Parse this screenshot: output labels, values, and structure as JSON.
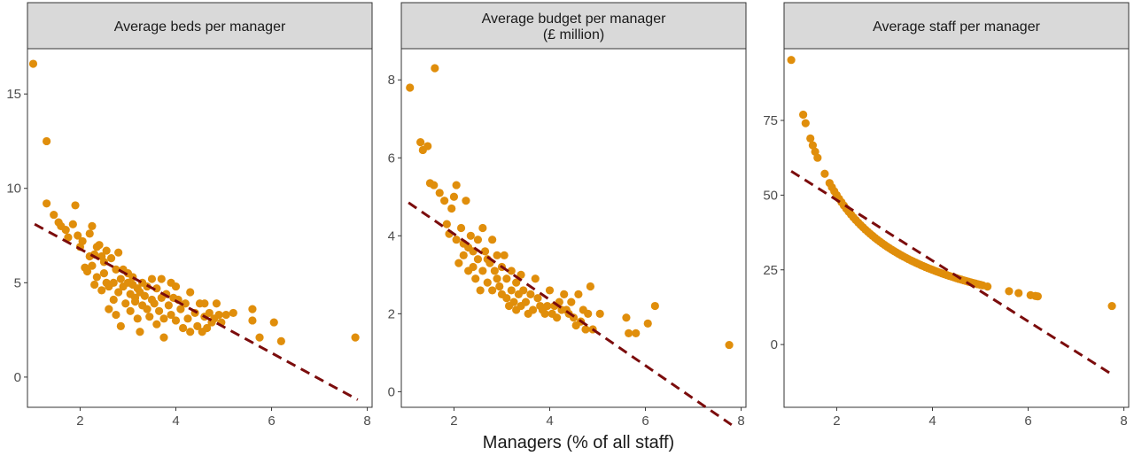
{
  "x_axis_title": "Managers (% of all staff)",
  "colors": {
    "point": "#E08E0B",
    "trend": "#7B0C0C",
    "strip": "#D9D9D9",
    "border": "#333333"
  },
  "chart_data": [
    {
      "type": "scatter",
      "title": "Average beds per manager",
      "title_lines": [
        "Average beds per manager"
      ],
      "xlim": [
        0.9,
        8.1
      ],
      "ylim": [
        -1.6,
        17.4
      ],
      "x_ticks": [
        2,
        4,
        6,
        8
      ],
      "y_ticks": [
        0,
        5,
        10,
        15
      ],
      "trend": {
        "x": [
          1.05,
          7.8
        ],
        "y": [
          8.1,
          -1.2
        ]
      },
      "points": [
        [
          1.02,
          16.6
        ],
        [
          1.3,
          12.5
        ],
        [
          1.3,
          9.2
        ],
        [
          1.45,
          8.6
        ],
        [
          1.55,
          8.2
        ],
        [
          1.6,
          8.0
        ],
        [
          1.7,
          7.8
        ],
        [
          1.75,
          7.4
        ],
        [
          1.85,
          8.1
        ],
        [
          1.9,
          9.1
        ],
        [
          1.95,
          7.5
        ],
        [
          2.0,
          6.9
        ],
        [
          2.05,
          7.2
        ],
        [
          2.1,
          5.8
        ],
        [
          2.15,
          5.6
        ],
        [
          2.2,
          7.6
        ],
        [
          2.2,
          6.4
        ],
        [
          2.25,
          5.9
        ],
        [
          2.25,
          8.0
        ],
        [
          2.3,
          6.5
        ],
        [
          2.3,
          4.9
        ],
        [
          2.35,
          5.3
        ],
        [
          2.35,
          6.9
        ],
        [
          2.4,
          7.0
        ],
        [
          2.45,
          6.4
        ],
        [
          2.45,
          4.6
        ],
        [
          2.5,
          6.1
        ],
        [
          2.5,
          5.5
        ],
        [
          2.55,
          6.7
        ],
        [
          2.55,
          5.0
        ],
        [
          2.6,
          4.8
        ],
        [
          2.6,
          3.6
        ],
        [
          2.65,
          6.3
        ],
        [
          2.7,
          5.0
        ],
        [
          2.7,
          4.1
        ],
        [
          2.75,
          5.7
        ],
        [
          2.75,
          3.3
        ],
        [
          2.8,
          6.6
        ],
        [
          2.8,
          4.5
        ],
        [
          2.85,
          2.7
        ],
        [
          2.85,
          5.2
        ],
        [
          2.9,
          5.7
        ],
        [
          2.9,
          4.8
        ],
        [
          2.95,
          3.9
        ],
        [
          3.0,
          5.0
        ],
        [
          3.0,
          5.5
        ],
        [
          3.05,
          4.4
        ],
        [
          3.05,
          3.5
        ],
        [
          3.1,
          4.9
        ],
        [
          3.1,
          5.3
        ],
        [
          3.15,
          4.2
        ],
        [
          3.15,
          4.0
        ],
        [
          3.2,
          3.1
        ],
        [
          3.2,
          4.7
        ],
        [
          3.25,
          4.5
        ],
        [
          3.25,
          2.4
        ],
        [
          3.3,
          3.8
        ],
        [
          3.3,
          5.0
        ],
        [
          3.35,
          4.3
        ],
        [
          3.4,
          3.6
        ],
        [
          3.4,
          4.8
        ],
        [
          3.45,
          3.2
        ],
        [
          3.5,
          5.2
        ],
        [
          3.5,
          4.1
        ],
        [
          3.55,
          3.9
        ],
        [
          3.6,
          2.8
        ],
        [
          3.6,
          4.7
        ],
        [
          3.65,
          3.5
        ],
        [
          3.7,
          5.2
        ],
        [
          3.7,
          4.2
        ],
        [
          3.75,
          3.1
        ],
        [
          3.75,
          2.1
        ],
        [
          3.8,
          4.4
        ],
        [
          3.85,
          3.8
        ],
        [
          3.9,
          5.0
        ],
        [
          3.9,
          3.3
        ],
        [
          3.95,
          4.2
        ],
        [
          4.0,
          3.0
        ],
        [
          4.0,
          4.8
        ],
        [
          4.05,
          4.1
        ],
        [
          4.1,
          3.6
        ],
        [
          4.15,
          2.6
        ],
        [
          4.2,
          3.9
        ],
        [
          4.25,
          3.1
        ],
        [
          4.3,
          4.5
        ],
        [
          4.3,
          2.4
        ],
        [
          4.4,
          3.4
        ],
        [
          4.45,
          2.7
        ],
        [
          4.5,
          3.9
        ],
        [
          4.55,
          2.4
        ],
        [
          4.6,
          3.2
        ],
        [
          4.6,
          3.9
        ],
        [
          4.65,
          2.6
        ],
        [
          4.7,
          3.4
        ],
        [
          4.75,
          2.9
        ],
        [
          4.8,
          3.1
        ],
        [
          4.85,
          3.9
        ],
        [
          4.9,
          3.3
        ],
        [
          4.95,
          2.9
        ],
        [
          5.05,
          3.3
        ],
        [
          5.2,
          3.4
        ],
        [
          5.6,
          3.6
        ],
        [
          5.6,
          3.0
        ],
        [
          5.75,
          2.1
        ],
        [
          6.05,
          2.9
        ],
        [
          6.2,
          1.9
        ],
        [
          7.75,
          2.1
        ]
      ]
    },
    {
      "type": "scatter",
      "title": "Average budget per manager (£ million)",
      "title_lines": [
        "Average budget per manager",
        "(£ million)"
      ],
      "xlim": [
        0.9,
        8.1
      ],
      "ylim": [
        -0.4,
        8.8
      ],
      "x_ticks": [
        2,
        4,
        6,
        8
      ],
      "y_ticks": [
        0,
        2,
        4,
        6,
        8
      ],
      "trend": {
        "x": [
          1.05,
          7.8
        ],
        "y": [
          4.85,
          -0.85
        ]
      },
      "points": [
        [
          1.08,
          7.8
        ],
        [
          1.3,
          6.4
        ],
        [
          1.35,
          6.2
        ],
        [
          1.45,
          6.3
        ],
        [
          1.5,
          5.35
        ],
        [
          1.58,
          5.3
        ],
        [
          1.6,
          8.3
        ],
        [
          1.7,
          5.1
        ],
        [
          1.8,
          4.9
        ],
        [
          1.85,
          4.3
        ],
        [
          1.9,
          4.05
        ],
        [
          1.95,
          4.7
        ],
        [
          2.0,
          5.0
        ],
        [
          2.05,
          3.9
        ],
        [
          2.05,
          5.3
        ],
        [
          2.1,
          3.3
        ],
        [
          2.15,
          4.2
        ],
        [
          2.2,
          3.8
        ],
        [
          2.2,
          3.5
        ],
        [
          2.25,
          4.9
        ],
        [
          2.3,
          3.7
        ],
        [
          2.3,
          3.1
        ],
        [
          2.35,
          4.0
        ],
        [
          2.4,
          3.6
        ],
        [
          2.4,
          3.2
        ],
        [
          2.45,
          2.9
        ],
        [
          2.5,
          3.4
        ],
        [
          2.5,
          3.9
        ],
        [
          2.55,
          2.6
        ],
        [
          2.6,
          3.1
        ],
        [
          2.6,
          4.2
        ],
        [
          2.65,
          3.6
        ],
        [
          2.7,
          2.8
        ],
        [
          2.7,
          3.4
        ],
        [
          2.75,
          3.3
        ],
        [
          2.8,
          2.6
        ],
        [
          2.8,
          3.9
        ],
        [
          2.85,
          3.1
        ],
        [
          2.9,
          2.9
        ],
        [
          2.9,
          3.5
        ],
        [
          2.95,
          2.7
        ],
        [
          3.0,
          3.2
        ],
        [
          3.0,
          2.5
        ],
        [
          3.05,
          3.5
        ],
        [
          3.1,
          2.4
        ],
        [
          3.1,
          2.9
        ],
        [
          3.15,
          2.2
        ],
        [
          3.2,
          2.6
        ],
        [
          3.2,
          3.1
        ],
        [
          3.25,
          2.3
        ],
        [
          3.3,
          2.8
        ],
        [
          3.3,
          2.1
        ],
        [
          3.35,
          2.5
        ],
        [
          3.4,
          2.2
        ],
        [
          3.4,
          3.0
        ],
        [
          3.45,
          2.6
        ],
        [
          3.5,
          2.3
        ],
        [
          3.55,
          2.0
        ],
        [
          3.6,
          2.5
        ],
        [
          3.65,
          2.1
        ],
        [
          3.7,
          2.9
        ],
        [
          3.75,
          2.4
        ],
        [
          3.8,
          2.2
        ],
        [
          3.85,
          2.1
        ],
        [
          3.9,
          2.0
        ],
        [
          3.95,
          2.2
        ],
        [
          4.0,
          2.6
        ],
        [
          4.05,
          2.0
        ],
        [
          4.1,
          2.2
        ],
        [
          4.15,
          1.9
        ],
        [
          4.2,
          2.3
        ],
        [
          4.25,
          2.1
        ],
        [
          4.3,
          2.5
        ],
        [
          4.35,
          2.1
        ],
        [
          4.4,
          2.0
        ],
        [
          4.45,
          2.3
        ],
        [
          4.5,
          1.9
        ],
        [
          4.55,
          1.7
        ],
        [
          4.6,
          2.5
        ],
        [
          4.65,
          1.8
        ],
        [
          4.7,
          2.1
        ],
        [
          4.75,
          1.6
        ],
        [
          4.8,
          2.0
        ],
        [
          4.85,
          2.7
        ],
        [
          4.9,
          1.6
        ],
        [
          5.05,
          2.0
        ],
        [
          5.6,
          1.9
        ],
        [
          5.65,
          1.5
        ],
        [
          5.8,
          1.5
        ],
        [
          6.05,
          1.75
        ],
        [
          6.2,
          2.2
        ],
        [
          7.75,
          1.2
        ]
      ]
    },
    {
      "type": "scatter",
      "title": "Average staff per manager",
      "title_lines": [
        "Average staff per manager"
      ],
      "xlim": [
        0.9,
        8.1
      ],
      "ylim": [
        -21,
        99
      ],
      "x_ticks": [
        2,
        4,
        6,
        8
      ],
      "y_ticks": [
        0,
        25,
        50,
        75
      ],
      "trend": {
        "x": [
          1.05,
          7.8
        ],
        "y": [
          58,
          -10.5
        ]
      },
      "curve_x": [
        1.05,
        1.3,
        1.35,
        1.45,
        1.5,
        1.55,
        1.6,
        1.75,
        1.85,
        1.9,
        1.95,
        2.0,
        2.05,
        2.1,
        2.15,
        2.2,
        2.25,
        2.3,
        2.35,
        2.4,
        2.45,
        2.5,
        2.55,
        2.6,
        2.65,
        2.7,
        2.75,
        2.8,
        2.85,
        2.9,
        2.95,
        3.0,
        3.05,
        3.1,
        3.15,
        3.2,
        3.25,
        3.3,
        3.35,
        3.4,
        3.45,
        3.5,
        3.55,
        3.6,
        3.65,
        3.7,
        3.75,
        3.8,
        3.85,
        3.9,
        3.95,
        4.0,
        4.05,
        4.1,
        4.15,
        4.2,
        4.25,
        4.3,
        4.35,
        4.4,
        4.45,
        4.5,
        4.55,
        4.6,
        4.65,
        4.7,
        4.75,
        4.8,
        4.85,
        4.9,
        4.95,
        5.0,
        5.05,
        5.15,
        5.6,
        5.8,
        6.05,
        6.15,
        6.2,
        7.75
      ],
      "curve_k": 100
    }
  ]
}
